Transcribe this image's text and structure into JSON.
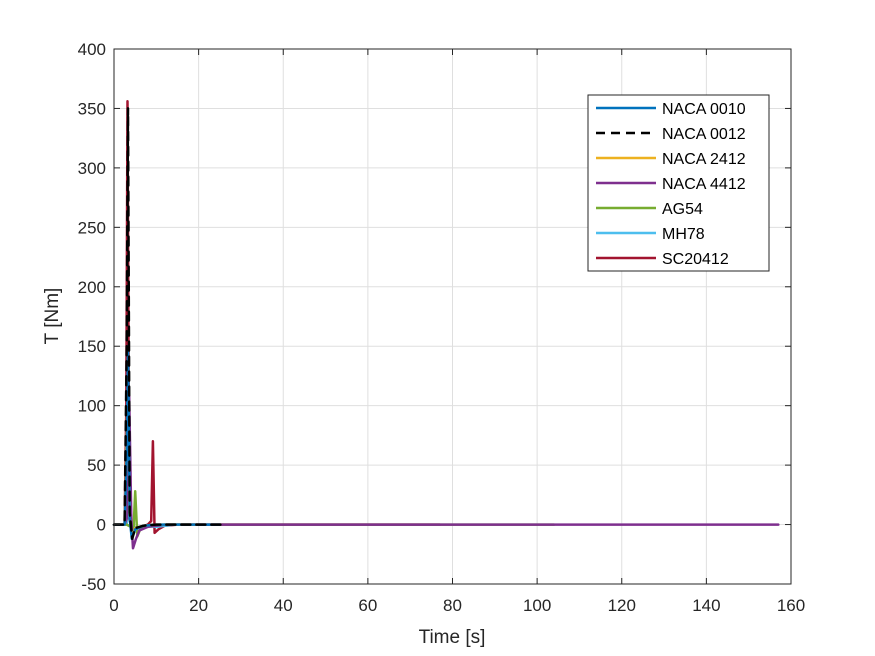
{
  "chart_data": {
    "type": "line",
    "xlabel": "Time [s]",
    "ylabel": "T [Nm]",
    "xlim": [
      0,
      160
    ],
    "ylim": [
      -50,
      400
    ],
    "xticks": [
      0,
      20,
      40,
      60,
      80,
      100,
      120,
      140,
      160
    ],
    "yticks": [
      -50,
      0,
      50,
      100,
      150,
      200,
      250,
      300,
      350,
      400
    ],
    "grid": true,
    "legend_position": "top-right",
    "series": [
      {
        "name": "NACA 0010",
        "color": "#0072BD",
        "dash": "solid",
        "x": [
          0,
          2.5,
          3.0,
          3.3,
          3.7,
          4.2,
          5.0,
          7.0,
          10,
          15,
          20,
          25
        ],
        "y": [
          0,
          0,
          60,
          150,
          5,
          -12,
          -4,
          -1,
          0,
          0,
          0,
          0
        ]
      },
      {
        "name": "NACA 0012",
        "color": "#000000",
        "dash": "dashed",
        "x": [
          0,
          2.5,
          3.0,
          3.3,
          3.7,
          4.3,
          5.0,
          7.0,
          10,
          15,
          20,
          26
        ],
        "y": [
          0,
          0,
          150,
          350,
          10,
          -12,
          -3,
          -1,
          0,
          0,
          0,
          0
        ]
      },
      {
        "name": "NACA 2412",
        "color": "#EDB120",
        "dash": "solid",
        "x": [
          0,
          2.5,
          3.0,
          3.3,
          3.7,
          4.3,
          5.0,
          7.0,
          10,
          15,
          20
        ],
        "y": [
          0,
          0,
          80,
          120,
          5,
          -10,
          -3,
          -1,
          0,
          0,
          0
        ]
      },
      {
        "name": "NACA 4412",
        "color": "#7E2F8E",
        "dash": "solid",
        "x": [
          0,
          2.5,
          3.0,
          3.6,
          4.1,
          4.5,
          5.2,
          6.0,
          8,
          12,
          20,
          40,
          60,
          80,
          100,
          120,
          140,
          157
        ],
        "y": [
          0,
          0,
          5,
          108,
          5,
          -20,
          -12,
          -5,
          -2,
          0,
          0,
          0,
          0,
          0,
          0,
          0,
          0,
          0
        ]
      },
      {
        "name": "AG54",
        "color": "#77AC30",
        "dash": "solid",
        "x": [
          0,
          3.0,
          4.0,
          4.6,
          5.0,
          5.5,
          6.2,
          8,
          12,
          20,
          40,
          60,
          80,
          104
        ],
        "y": [
          0,
          0,
          -2,
          -5,
          28,
          -10,
          -4,
          -1,
          0,
          0,
          0,
          0,
          0,
          0
        ]
      },
      {
        "name": "MH78",
        "color": "#4DBEEE",
        "dash": "solid",
        "x": [
          0,
          3.0,
          3.5,
          4.0,
          5.0,
          7,
          10,
          12,
          14,
          18
        ],
        "y": [
          0,
          0,
          30,
          2,
          -3,
          -1,
          -2,
          -1,
          0,
          0
        ]
      },
      {
        "name": "SC20412",
        "color": "#A2142F",
        "dash": "solid",
        "x": [
          0,
          2.5,
          2.9,
          3.2,
          3.6,
          4.3,
          5.2,
          6.5,
          8.0,
          8.8,
          9.2,
          9.6,
          10.5,
          12,
          15,
          20,
          40,
          60,
          77
        ],
        "y": [
          0,
          0,
          100,
          356,
          5,
          -4,
          -3,
          -2,
          0,
          3,
          70,
          -7,
          -4,
          -1,
          0,
          0,
          0,
          0,
          0
        ]
      }
    ]
  }
}
